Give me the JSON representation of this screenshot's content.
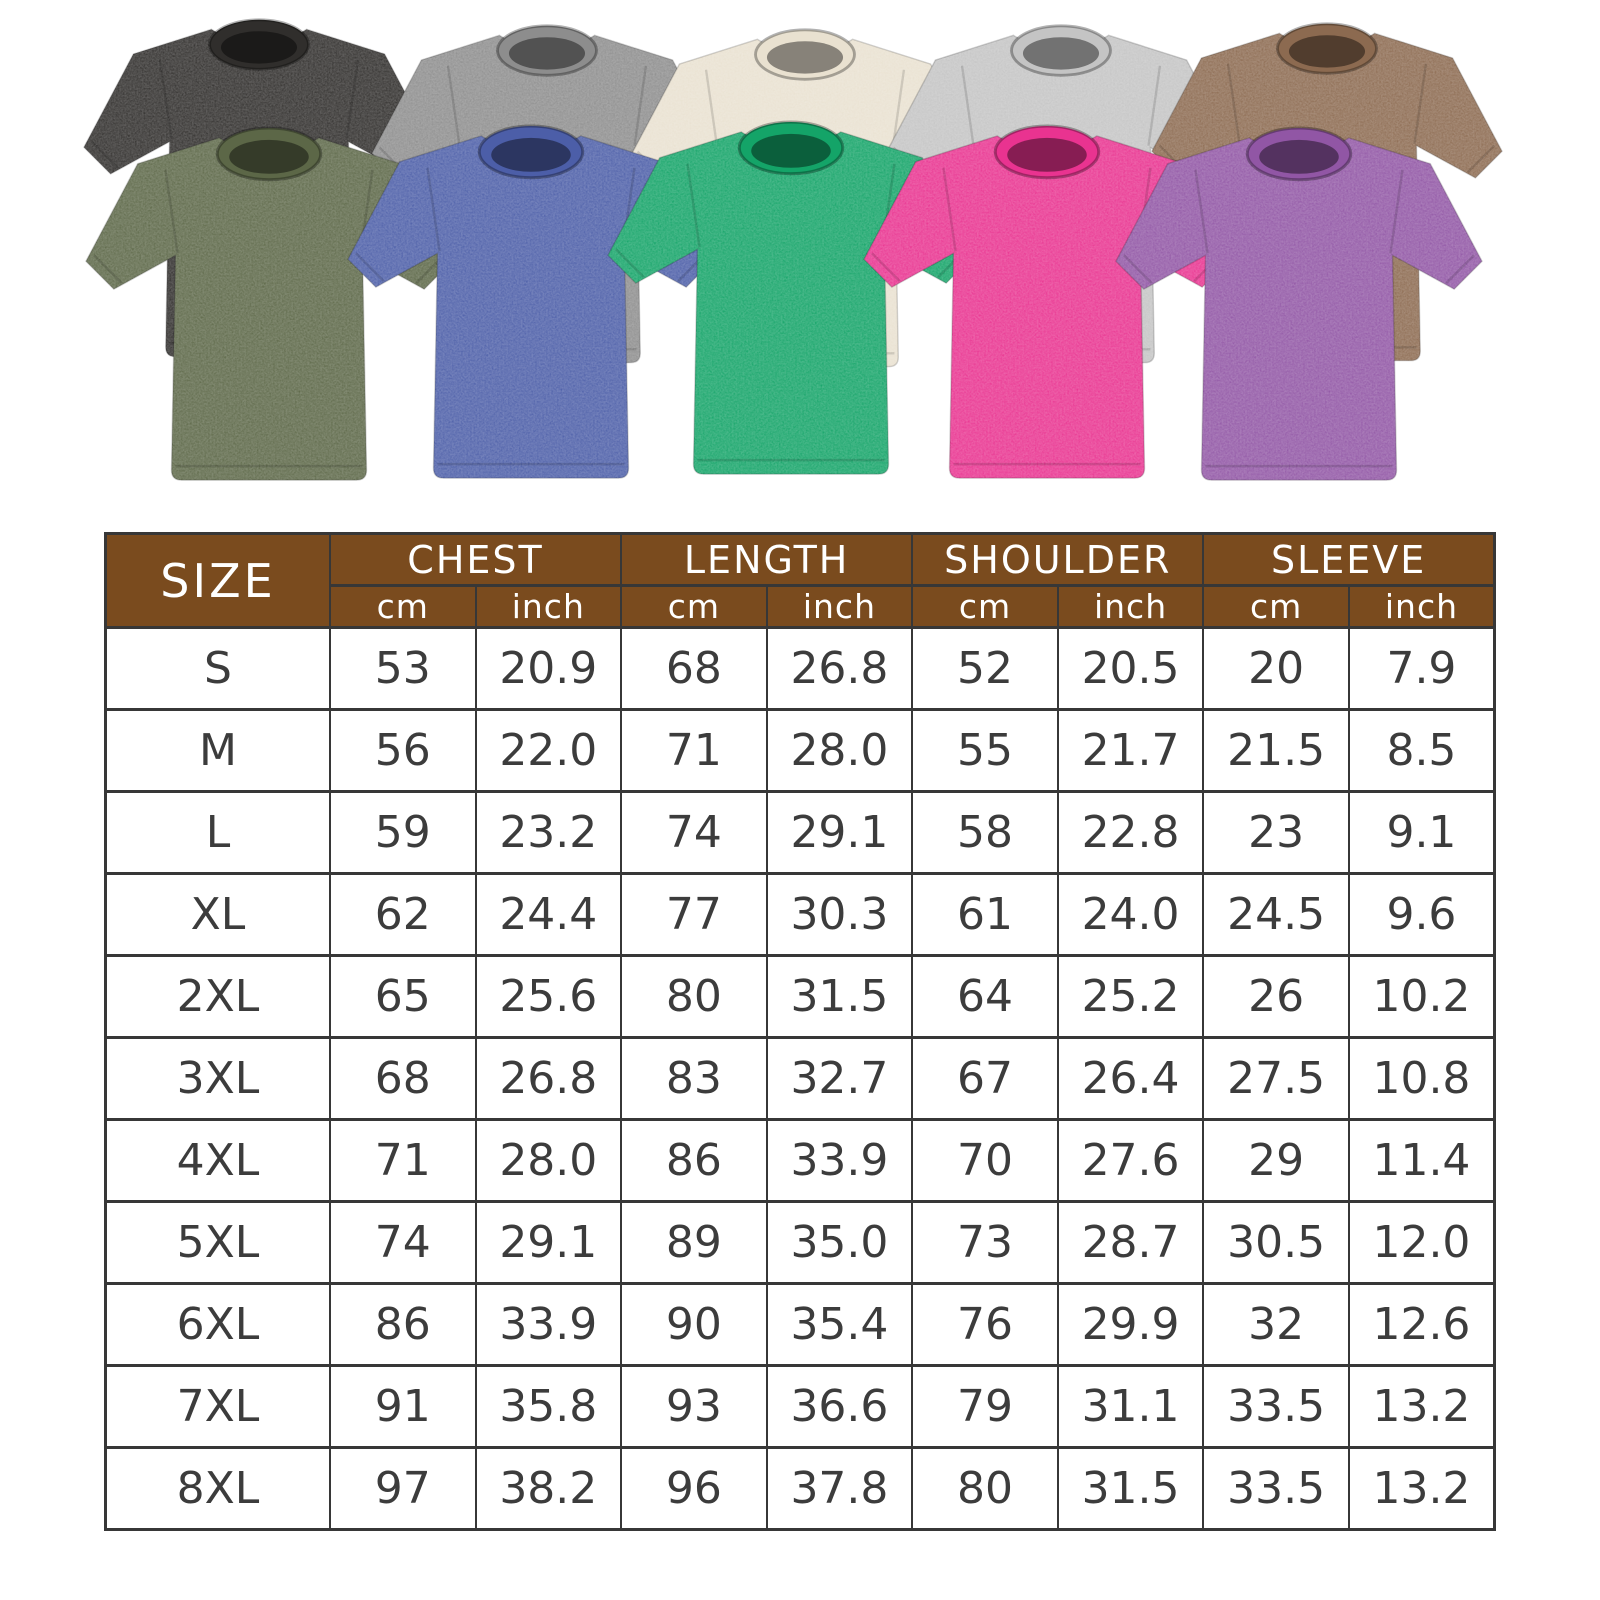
{
  "colors": {
    "header_bg": "#7a4b1e",
    "header_text": "#ffffff",
    "body_text": "#3c3c3c",
    "border": "#373737",
    "page_bg": "#ffffff"
  },
  "shirts": {
    "back_row": [
      {
        "name": "washed-black",
        "fill": "#302e2c"
      },
      {
        "name": "washed-gray",
        "fill": "#8d8d8d"
      },
      {
        "name": "washed-beige",
        "fill": "#e9e1d0"
      },
      {
        "name": "washed-light-gray",
        "fill": "#c4c4c4"
      },
      {
        "name": "washed-brown",
        "fill": "#8c6a50"
      }
    ],
    "front_row": [
      {
        "name": "washed-army-green",
        "fill": "#5c6747"
      },
      {
        "name": "washed-blue",
        "fill": "#4c5ea8"
      },
      {
        "name": "washed-green",
        "fill": "#14a468"
      },
      {
        "name": "washed-rose",
        "fill": "#e93390"
      },
      {
        "name": "washed-purple",
        "fill": "#9156a5"
      }
    ]
  },
  "table": {
    "size_header": "SIZE",
    "unit_cm": "cm",
    "unit_inch": "inch",
    "groups": [
      {
        "label": "CHEST"
      },
      {
        "label": "LENGTH"
      },
      {
        "label": "SHOULDER"
      },
      {
        "label": "SLEEVE"
      }
    ]
  },
  "chart_data": {
    "type": "table",
    "columns": [
      "SIZE",
      "CHEST cm",
      "CHEST inch",
      "LENGTH cm",
      "LENGTH inch",
      "SHOULDER cm",
      "SHOULDER inch",
      "SLEEVE cm",
      "SLEEVE inch"
    ],
    "rows": [
      [
        "S",
        "53",
        "20.9",
        "68",
        "26.8",
        "52",
        "20.5",
        "20",
        "7.9"
      ],
      [
        "M",
        "56",
        "22.0",
        "71",
        "28.0",
        "55",
        "21.7",
        "21.5",
        "8.5"
      ],
      [
        "L",
        "59",
        "23.2",
        "74",
        "29.1",
        "58",
        "22.8",
        "23",
        "9.1"
      ],
      [
        "XL",
        "62",
        "24.4",
        "77",
        "30.3",
        "61",
        "24.0",
        "24.5",
        "9.6"
      ],
      [
        "2XL",
        "65",
        "25.6",
        "80",
        "31.5",
        "64",
        "25.2",
        "26",
        "10.2"
      ],
      [
        "3XL",
        "68",
        "26.8",
        "83",
        "32.7",
        "67",
        "26.4",
        "27.5",
        "10.8"
      ],
      [
        "4XL",
        "71",
        "28.0",
        "86",
        "33.9",
        "70",
        "27.6",
        "29",
        "11.4"
      ],
      [
        "5XL",
        "74",
        "29.1",
        "89",
        "35.0",
        "73",
        "28.7",
        "30.5",
        "12.0"
      ],
      [
        "6XL",
        "86",
        "33.9",
        "90",
        "35.4",
        "76",
        "29.9",
        "32",
        "12.6"
      ],
      [
        "7XL",
        "91",
        "35.8",
        "93",
        "36.6",
        "79",
        "31.1",
        "33.5",
        "13.2"
      ],
      [
        "8XL",
        "97",
        "38.2",
        "96",
        "37.8",
        "80",
        "31.5",
        "33.5",
        "13.2"
      ]
    ]
  }
}
